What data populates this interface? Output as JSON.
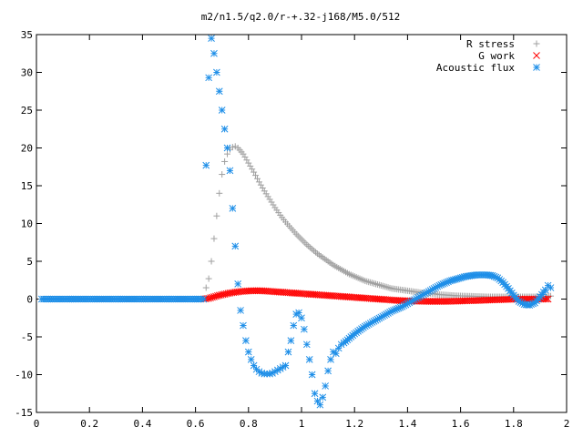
{
  "chart_data": {
    "type": "scatter",
    "title": "m2/n1.5/q2.0/r-+.32-j168/M5.0/512",
    "xlabel": "",
    "ylabel": "",
    "xlim": [
      0,
      2
    ],
    "ylim": [
      -15,
      35
    ],
    "x_ticks": [
      0,
      0.2,
      0.4,
      0.6,
      0.8,
      1,
      1.2,
      1.4,
      1.6,
      1.8,
      2
    ],
    "x_tick_labels": [
      "0",
      "0.2",
      "0.4",
      "0.6",
      "0.8",
      "1",
      "1.2",
      "1.4",
      "1.6",
      "1.8",
      "2"
    ],
    "y_ticks": [
      -15,
      -10,
      -5,
      0,
      5,
      10,
      15,
      20,
      25,
      30,
      35
    ],
    "y_tick_labels": [
      "-15",
      "-10",
      "-5",
      "0",
      "5",
      "10",
      "15",
      "20",
      "25",
      "30",
      "35"
    ],
    "grid": false,
    "legend_position": "top-right",
    "series": [
      {
        "name": "R stress",
        "marker": "plus",
        "color": "#a0a0a0",
        "points": [
          [
            0.02,
            0
          ],
          [
            0.1,
            0
          ],
          [
            0.2,
            0
          ],
          [
            0.3,
            0
          ],
          [
            0.4,
            0
          ],
          [
            0.5,
            0
          ],
          [
            0.6,
            0
          ],
          [
            0.63,
            0
          ],
          [
            0.64,
            1.5
          ],
          [
            0.65,
            2.7
          ],
          [
            0.66,
            5
          ],
          [
            0.67,
            8
          ],
          [
            0.68,
            11
          ],
          [
            0.69,
            14
          ],
          [
            0.7,
            16.5
          ],
          [
            0.71,
            18.2
          ],
          [
            0.72,
            19.2
          ],
          [
            0.73,
            19.8
          ],
          [
            0.74,
            20.1
          ],
          [
            0.75,
            20.2
          ],
          [
            0.76,
            20
          ],
          [
            0.78,
            19.2
          ],
          [
            0.8,
            18
          ],
          [
            0.82,
            16.8
          ],
          [
            0.84,
            15.5
          ],
          [
            0.86,
            14.3
          ],
          [
            0.88,
            13.2
          ],
          [
            0.9,
            12.1
          ],
          [
            0.92,
            11.1
          ],
          [
            0.94,
            10.2
          ],
          [
            0.96,
            9.4
          ],
          [
            0.98,
            8.6
          ],
          [
            1.0,
            7.9
          ],
          [
            1.02,
            7.2
          ],
          [
            1.04,
            6.6
          ],
          [
            1.06,
            6.0
          ],
          [
            1.08,
            5.5
          ],
          [
            1.1,
            5.0
          ],
          [
            1.12,
            4.5
          ],
          [
            1.14,
            4.1
          ],
          [
            1.16,
            3.7
          ],
          [
            1.18,
            3.3
          ],
          [
            1.2,
            3.0
          ],
          [
            1.22,
            2.7
          ],
          [
            1.24,
            2.4
          ],
          [
            1.26,
            2.2
          ],
          [
            1.28,
            2.0
          ],
          [
            1.3,
            1.8
          ],
          [
            1.32,
            1.6
          ],
          [
            1.34,
            1.4
          ],
          [
            1.36,
            1.3
          ],
          [
            1.38,
            1.2
          ],
          [
            1.4,
            1.1
          ],
          [
            1.42,
            1.0
          ],
          [
            1.44,
            0.9
          ],
          [
            1.46,
            0.8
          ],
          [
            1.48,
            0.75
          ],
          [
            1.5,
            0.7
          ],
          [
            1.52,
            0.6
          ],
          [
            1.54,
            0.55
          ],
          [
            1.56,
            0.5
          ],
          [
            1.58,
            0.45
          ],
          [
            1.6,
            0.42
          ],
          [
            1.62,
            0.4
          ],
          [
            1.64,
            0.38
          ],
          [
            1.66,
            0.35
          ],
          [
            1.68,
            0.33
          ],
          [
            1.7,
            0.3
          ],
          [
            1.72,
            0.3
          ],
          [
            1.74,
            0.3
          ],
          [
            1.76,
            0.3
          ],
          [
            1.78,
            0.3
          ],
          [
            1.8,
            0.3
          ],
          [
            1.82,
            0.3
          ],
          [
            1.84,
            0.3
          ],
          [
            1.86,
            0.3
          ],
          [
            1.88,
            0.3
          ],
          [
            1.9,
            0.3
          ],
          [
            1.92,
            0.3
          ],
          [
            1.94,
            0.4
          ]
        ]
      },
      {
        "name": "G work",
        "marker": "cross",
        "color": "#ff0000",
        "points": [
          [
            0.63,
            0
          ],
          [
            0.65,
            0.1
          ],
          [
            0.67,
            0.3
          ],
          [
            0.69,
            0.5
          ],
          [
            0.71,
            0.65
          ],
          [
            0.73,
            0.8
          ],
          [
            0.75,
            0.9
          ],
          [
            0.77,
            1.0
          ],
          [
            0.79,
            1.05
          ],
          [
            0.81,
            1.1
          ],
          [
            0.83,
            1.1
          ],
          [
            0.85,
            1.1
          ],
          [
            0.87,
            1.05
          ],
          [
            0.89,
            1.0
          ],
          [
            0.91,
            0.95
          ],
          [
            0.93,
            0.9
          ],
          [
            0.95,
            0.85
          ],
          [
            0.97,
            0.8
          ],
          [
            0.99,
            0.75
          ],
          [
            1.01,
            0.7
          ],
          [
            1.03,
            0.65
          ],
          [
            1.05,
            0.6
          ],
          [
            1.07,
            0.55
          ],
          [
            1.09,
            0.5
          ],
          [
            1.11,
            0.45
          ],
          [
            1.13,
            0.4
          ],
          [
            1.15,
            0.35
          ],
          [
            1.17,
            0.3
          ],
          [
            1.19,
            0.25
          ],
          [
            1.21,
            0.2
          ],
          [
            1.23,
            0.15
          ],
          [
            1.25,
            0.1
          ],
          [
            1.27,
            0.05
          ],
          [
            1.29,
            0.0
          ],
          [
            1.31,
            -0.05
          ],
          [
            1.33,
            -0.1
          ],
          [
            1.35,
            -0.15
          ],
          [
            1.37,
            -0.2
          ],
          [
            1.39,
            -0.22
          ],
          [
            1.41,
            -0.25
          ],
          [
            1.43,
            -0.27
          ],
          [
            1.45,
            -0.28
          ],
          [
            1.47,
            -0.3
          ],
          [
            1.49,
            -0.3
          ],
          [
            1.51,
            -0.3
          ],
          [
            1.53,
            -0.3
          ],
          [
            1.55,
            -0.3
          ],
          [
            1.57,
            -0.28
          ],
          [
            1.59,
            -0.26
          ],
          [
            1.61,
            -0.24
          ],
          [
            1.63,
            -0.22
          ],
          [
            1.65,
            -0.2
          ],
          [
            1.67,
            -0.18
          ],
          [
            1.69,
            -0.15
          ],
          [
            1.71,
            -0.12
          ],
          [
            1.73,
            -0.1
          ],
          [
            1.75,
            -0.08
          ],
          [
            1.77,
            -0.05
          ],
          [
            1.79,
            -0.03
          ],
          [
            1.81,
            0
          ],
          [
            1.83,
            0
          ],
          [
            1.85,
            0
          ],
          [
            1.87,
            0
          ],
          [
            1.89,
            0
          ],
          [
            1.91,
            0
          ],
          [
            1.93,
            0
          ]
        ]
      },
      {
        "name": "Acoustic flux",
        "marker": "star",
        "color": "#1f8fe8",
        "points": [
          [
            0.02,
            0
          ],
          [
            0.05,
            0
          ],
          [
            0.1,
            0
          ],
          [
            0.15,
            0
          ],
          [
            0.2,
            0
          ],
          [
            0.25,
            0
          ],
          [
            0.3,
            0
          ],
          [
            0.35,
            0
          ],
          [
            0.4,
            0
          ],
          [
            0.45,
            0
          ],
          [
            0.5,
            0
          ],
          [
            0.55,
            0
          ],
          [
            0.6,
            0
          ],
          [
            0.62,
            0
          ],
          [
            0.63,
            0
          ],
          [
            0.64,
            17.7
          ],
          [
            0.65,
            29.3
          ],
          [
            0.66,
            34.5
          ],
          [
            0.67,
            32.5
          ],
          [
            0.68,
            30.0
          ],
          [
            0.69,
            27.5
          ],
          [
            0.7,
            25.0
          ],
          [
            0.71,
            22.5
          ],
          [
            0.72,
            20.0
          ],
          [
            0.73,
            17.0
          ],
          [
            0.74,
            12.0
          ],
          [
            0.75,
            7.0
          ],
          [
            0.76,
            2.0
          ],
          [
            0.77,
            -1.5
          ],
          [
            0.78,
            -3.5
          ],
          [
            0.79,
            -5.5
          ],
          [
            0.8,
            -7.0
          ],
          [
            0.81,
            -8.0
          ],
          [
            0.82,
            -8.8
          ],
          [
            0.83,
            -9.3
          ],
          [
            0.84,
            -9.6
          ],
          [
            0.85,
            -9.8
          ],
          [
            0.86,
            -9.9
          ],
          [
            0.87,
            -9.9
          ],
          [
            0.88,
            -9.9
          ],
          [
            0.89,
            -9.8
          ],
          [
            0.9,
            -9.6
          ],
          [
            0.91,
            -9.4
          ],
          [
            0.92,
            -9.2
          ],
          [
            0.93,
            -9.0
          ],
          [
            0.94,
            -8.8
          ],
          [
            0.95,
            -7.0
          ],
          [
            0.96,
            -5.5
          ],
          [
            0.97,
            -3.5
          ],
          [
            0.98,
            -2.0
          ],
          [
            0.99,
            -1.8
          ],
          [
            1.0,
            -2.5
          ],
          [
            1.01,
            -4.0
          ],
          [
            1.02,
            -6.0
          ],
          [
            1.03,
            -8.0
          ],
          [
            1.04,
            -10.0
          ],
          [
            1.05,
            -12.5
          ],
          [
            1.06,
            -13.5
          ],
          [
            1.07,
            -14.0
          ],
          [
            1.08,
            -13.0
          ],
          [
            1.09,
            -11.5
          ],
          [
            1.1,
            -9.5
          ],
          [
            1.11,
            -8.0
          ],
          [
            1.12,
            -7.0
          ],
          [
            1.13,
            -7.2
          ],
          [
            1.14,
            -6.5
          ],
          [
            1.15,
            -6.0
          ],
          [
            1.16,
            -5.8
          ],
          [
            1.18,
            -5.2
          ],
          [
            1.2,
            -4.6
          ],
          [
            1.22,
            -4.1
          ],
          [
            1.24,
            -3.6
          ],
          [
            1.26,
            -3.2
          ],
          [
            1.28,
            -2.8
          ],
          [
            1.3,
            -2.4
          ],
          [
            1.32,
            -2.0
          ],
          [
            1.34,
            -1.6
          ],
          [
            1.36,
            -1.3
          ],
          [
            1.38,
            -1.0
          ],
          [
            1.4,
            -0.6
          ],
          [
            1.42,
            -0.2
          ],
          [
            1.44,
            0.2
          ],
          [
            1.46,
            0.6
          ],
          [
            1.48,
            1.0
          ],
          [
            1.5,
            1.4
          ],
          [
            1.52,
            1.8
          ],
          [
            1.54,
            2.1
          ],
          [
            1.56,
            2.4
          ],
          [
            1.58,
            2.6
          ],
          [
            1.6,
            2.8
          ],
          [
            1.62,
            3.0
          ],
          [
            1.64,
            3.1
          ],
          [
            1.66,
            3.2
          ],
          [
            1.68,
            3.2
          ],
          [
            1.7,
            3.2
          ],
          [
            1.72,
            3.1
          ],
          [
            1.74,
            2.8
          ],
          [
            1.76,
            2.2
          ],
          [
            1.78,
            1.4
          ],
          [
            1.8,
            0.5
          ],
          [
            1.82,
            -0.3
          ],
          [
            1.84,
            -0.7
          ],
          [
            1.86,
            -0.8
          ],
          [
            1.88,
            -0.5
          ],
          [
            1.9,
            0.3
          ],
          [
            1.92,
            1.2
          ],
          [
            1.93,
            1.8
          ],
          [
            1.94,
            1.5
          ]
        ]
      }
    ]
  }
}
